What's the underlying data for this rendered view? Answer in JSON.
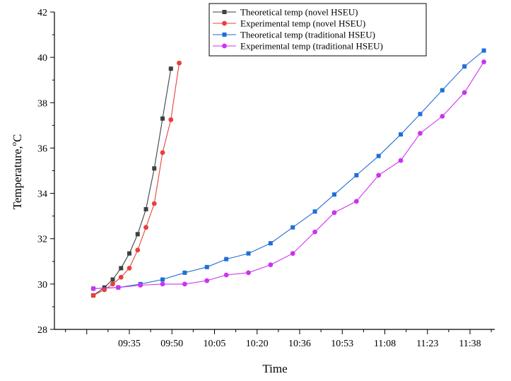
{
  "chart_data": {
    "type": "line",
    "title": "",
    "xlabel": "Time",
    "ylabel": "Temperature,°C",
    "ylabel_main": "Temperature,",
    "ylabel_unit_sup": "o",
    "ylabel_unit": "C",
    "x_is_time": true,
    "x_tick_labels": [
      "09:35",
      "09:50",
      "10:05",
      "10:20",
      "10:36",
      "10:53",
      "11:08",
      "11:23",
      "11:38"
    ],
    "ylim": [
      28,
      42
    ],
    "y_ticks": [
      28,
      30,
      32,
      34,
      36,
      38,
      40,
      42
    ],
    "grid": false,
    "legend_position": "top-right",
    "series": [
      {
        "name": "Theoretical temp (novel HSEU)",
        "color": "#404040",
        "marker": "square",
        "x": [
          "09:22",
          "09:26",
          "09:29",
          "09:32",
          "09:35",
          "09:38",
          "09:41",
          "09:44",
          "09:47",
          "09:50"
        ],
        "y": [
          29.5,
          29.85,
          30.2,
          30.7,
          31.35,
          32.2,
          33.3,
          35.1,
          37.3,
          39.5
        ]
      },
      {
        "name": "Experimental temp (novel HSEU)",
        "color": "#e8403a",
        "marker": "circle",
        "x": [
          "09:22",
          "09:26",
          "09:29",
          "09:32",
          "09:35",
          "09:38",
          "09:41",
          "09:44",
          "09:47",
          "09:50",
          "09:53"
        ],
        "y": [
          29.5,
          29.75,
          30.0,
          30.3,
          30.7,
          31.5,
          32.5,
          33.55,
          35.8,
          37.25,
          39.75
        ]
      },
      {
        "name": "Theoretical temp (traditional HSEU)",
        "color": "#1f6fd6",
        "marker": "square",
        "x": [
          "09:22",
          "09:31",
          "09:39",
          "09:47",
          "09:55",
          "10:03",
          "10:10",
          "10:18",
          "10:26",
          "10:34",
          "10:42",
          "10:49",
          "10:57",
          "11:05",
          "11:13",
          "11:20",
          "11:28",
          "11:36",
          "11:43"
        ],
        "y": [
          29.8,
          29.85,
          30.0,
          30.2,
          30.5,
          30.75,
          31.1,
          31.35,
          31.8,
          32.5,
          33.2,
          33.95,
          34.8,
          35.65,
          36.6,
          37.5,
          38.55,
          39.6,
          40.3
        ]
      },
      {
        "name": "Experimental temp (traditional HSEU)",
        "color": "#cc33ee",
        "marker": "circle",
        "x": [
          "09:22",
          "09:31",
          "09:39",
          "09:47",
          "09:55",
          "10:03",
          "10:10",
          "10:18",
          "10:26",
          "10:34",
          "10:42",
          "10:49",
          "10:57",
          "11:05",
          "11:13",
          "11:20",
          "11:28",
          "11:36",
          "11:43"
        ],
        "y": [
          29.8,
          29.85,
          29.95,
          30.0,
          30.0,
          30.15,
          30.4,
          30.5,
          30.85,
          31.35,
          32.3,
          33.15,
          33.65,
          34.8,
          35.45,
          36.65,
          37.4,
          38.45,
          39.8
        ]
      }
    ]
  }
}
